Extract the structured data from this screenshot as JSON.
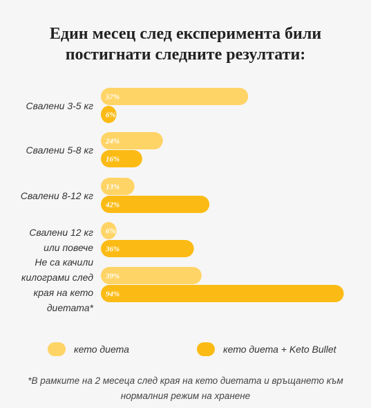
{
  "colors": {
    "series1": "#ffd466",
    "series2": "#fbbb14",
    "background": "#f6f6f6",
    "text": "#333333"
  },
  "chart_data": {
    "type": "bar",
    "orientation": "horizontal",
    "title_lines": [
      "Един месец след експеримента били",
      "постигнати следните резултати:"
    ],
    "categories": [
      [
        "Свалени 3-5 кг"
      ],
      [
        "Свалени 5-8 кг"
      ],
      [
        "Свалени 8-12 кг"
      ],
      [
        "Свалени 12 кг",
        "или повече"
      ],
      [
        "Не са качили",
        "килограми след",
        "края на кето",
        "диетата*"
      ]
    ],
    "series": [
      {
        "name": "кето диета",
        "values": [
          57,
          24,
          13,
          6,
          39
        ],
        "labels": [
          "57%",
          "24%",
          "13%",
          "6%",
          "39%"
        ]
      },
      {
        "name": "кето диета + Keto Bullet",
        "values": [
          6,
          16,
          42,
          36,
          94
        ],
        "labels": [
          "6%",
          "16%",
          "42%",
          "36%",
          "94%"
        ]
      }
    ],
    "value_unit": "%",
    "xlim": [
      0,
      100
    ],
    "grid": false,
    "axes_visible": false,
    "legend_position": "bottom",
    "footnote_lines": [
      "*В рамките на 2 месеца след края на кето диетата и връщането към",
      "нормалния режим на хранене"
    ]
  }
}
